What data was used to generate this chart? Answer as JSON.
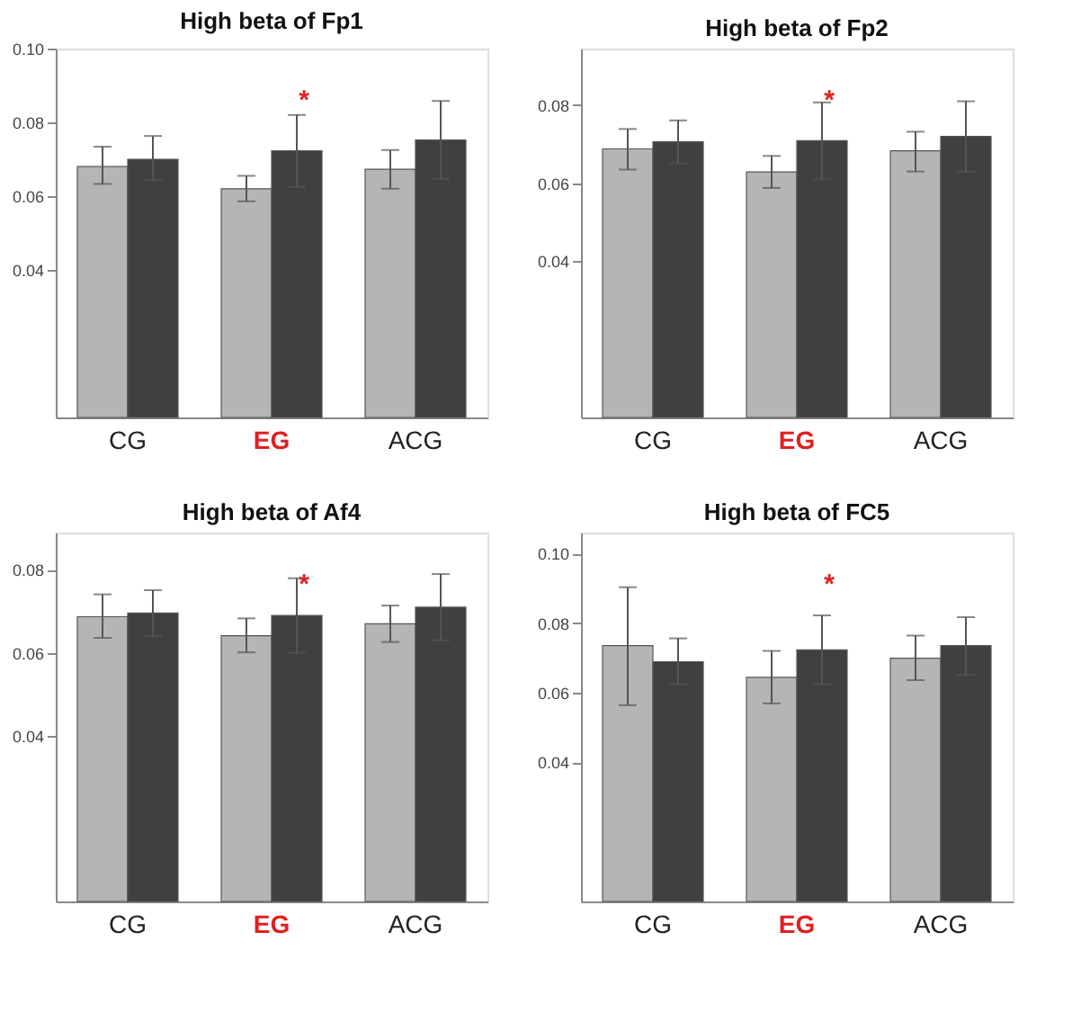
{
  "chart_data": [
    {
      "type": "bar",
      "title": "High beta of Fp1",
      "categories": [
        "CG",
        "EG",
        "ACG"
      ],
      "series": [
        {
          "color": "#b5b5b5",
          "values": [
            0.068,
            0.062,
            0.0673
          ],
          "errors": [
            [
              0.0633,
              0.0734
            ],
            [
              0.0586,
              0.0655
            ],
            [
              0.062,
              0.0725
            ]
          ]
        },
        {
          "color": "#404040",
          "values": [
            0.07,
            0.0723,
            0.0752
          ],
          "errors": [
            [
              0.0644,
              0.0763
            ],
            [
              0.0625,
              0.082
            ],
            [
              0.0647,
              0.0858
            ]
          ]
        }
      ],
      "ylim": [
        0,
        0.1
      ],
      "yticks": [
        0.04,
        0.06,
        0.08,
        {
          "value": 0.1,
          "label": "0.10"
        }
      ],
      "annotations": [
        "*"
      ]
    },
    {
      "type": "bar",
      "title": "High beta of Fp2",
      "categories": [
        "CG",
        "EG",
        "ACG"
      ],
      "series": [
        {
          "color": "#b5b5b5",
          "values": [
            0.0688,
            0.0629,
            0.0683
          ],
          "errors": [
            [
              0.0635,
              0.0739
            ],
            [
              0.0588,
              0.067
            ],
            [
              0.063,
              0.0732
            ]
          ]
        },
        {
          "color": "#404040",
          "values": [
            0.0706,
            0.0709,
            0.072
          ],
          "errors": [
            [
              0.0651,
              0.0761
            ],
            [
              0.061,
              0.0807
            ],
            [
              0.063,
              0.081
            ]
          ]
        }
      ],
      "ylim": [
        0,
        0.0945
      ],
      "yticks": [
        0.04,
        0.06,
        0.08
      ],
      "annotations": [
        "*"
      ]
    },
    {
      "type": "bar",
      "title": "High beta of Af4",
      "categories": [
        "CG",
        "EG",
        "ACG"
      ],
      "series": [
        {
          "color": "#b5b5b5",
          "values": [
            0.0687,
            0.0641,
            0.067
          ],
          "errors": [
            [
              0.0636,
              0.0741
            ],
            [
              0.0601,
              0.0683
            ],
            [
              0.0626,
              0.0714
            ]
          ]
        },
        {
          "color": "#404040",
          "values": [
            0.0696,
            0.069,
            0.071
          ],
          "errors": [
            [
              0.064,
              0.0751
            ],
            [
              0.06,
              0.078
            ],
            [
              0.063,
              0.079
            ]
          ]
        }
      ],
      "ylim": [
        0,
        0.089
      ],
      "yticks": [
        0.04,
        0.06,
        0.08
      ],
      "annotations": [
        "*"
      ]
    },
    {
      "type": "bar",
      "title": "High beta of FC5",
      "categories": [
        "CG",
        "EG",
        "ACG"
      ],
      "series": [
        {
          "color": "#b5b5b5",
          "values": [
            0.0735,
            0.0644,
            0.0699
          ],
          "errors": [
            [
              0.0564,
              0.0903
            ],
            [
              0.0569,
              0.072
            ],
            [
              0.0636,
              0.0764
            ]
          ]
        },
        {
          "color": "#404040",
          "values": [
            0.0689,
            0.0723,
            0.0735
          ],
          "errors": [
            [
              0.0624,
              0.0756
            ],
            [
              0.0624,
              0.0822
            ],
            [
              0.0651,
              0.0817
            ]
          ]
        }
      ],
      "ylim": [
        0,
        0.106
      ],
      "yticks": [
        0.04,
        0.06,
        0.08,
        {
          "value": 0.1,
          "label": "0.10"
        }
      ],
      "annotations": [
        "*"
      ]
    }
  ]
}
